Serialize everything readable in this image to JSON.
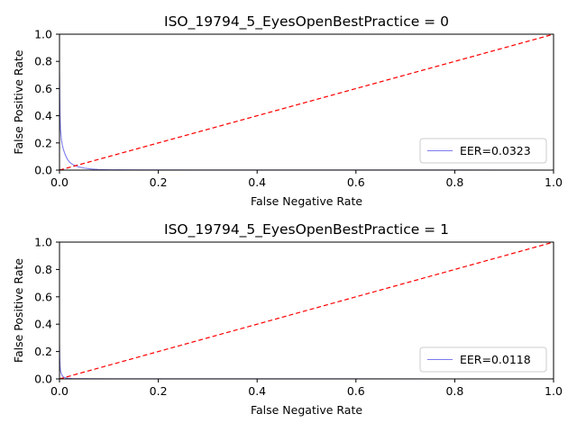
{
  "chart_data": [
    {
      "type": "line",
      "title": "ISO_19794_5_EyesOpenBestPractice = 0",
      "xlabel": "False Negative Rate",
      "ylabel": "False Positive Rate",
      "xlim": [
        0,
        1
      ],
      "ylim": [
        0,
        1
      ],
      "xticks": [
        "0.0",
        "0.2",
        "0.4",
        "0.6",
        "0.8",
        "1.0"
      ],
      "yticks": [
        "0.0",
        "0.2",
        "0.4",
        "0.6",
        "0.8",
        "1.0"
      ],
      "grid": false,
      "legend_position": "lower-right",
      "series": [
        {
          "name": "EER=0.0323",
          "color": "#7b7bf0",
          "x": [
            0.0,
            0.0005,
            0.001,
            0.002,
            0.004,
            0.006,
            0.008,
            0.012,
            0.016,
            0.02,
            0.025,
            0.032,
            0.04,
            0.05,
            0.065,
            0.08,
            0.1,
            0.15,
            0.3,
            0.6,
            1.0
          ],
          "y": [
            0.72,
            0.55,
            0.42,
            0.3,
            0.22,
            0.18,
            0.15,
            0.11,
            0.08,
            0.06,
            0.045,
            0.032,
            0.022,
            0.015,
            0.008,
            0.004,
            0.002,
            0.001,
            0.0005,
            0.0002,
            0.0
          ]
        },
        {
          "name": "",
          "color": "#ff0000",
          "dashed": true,
          "x": [
            0,
            1
          ],
          "y": [
            0,
            1
          ]
        }
      ]
    },
    {
      "type": "line",
      "title": "ISO_19794_5_EyesOpenBestPractice = 1",
      "xlabel": "False Negative Rate",
      "ylabel": "False Positive Rate",
      "xlim": [
        0,
        1
      ],
      "ylim": [
        0,
        1
      ],
      "xticks": [
        "0.0",
        "0.2",
        "0.4",
        "0.6",
        "0.8",
        "1.0"
      ],
      "yticks": [
        "0.0",
        "0.2",
        "0.4",
        "0.6",
        "0.8",
        "1.0"
      ],
      "grid": false,
      "legend_position": "lower-right",
      "series": [
        {
          "name": "EER=0.0118",
          "color": "#7b7bf0",
          "x": [
            0.0,
            0.0005,
            0.001,
            0.002,
            0.004,
            0.006,
            0.008,
            0.012,
            0.016,
            0.025,
            0.05,
            0.1,
            0.3,
            1.0
          ],
          "y": [
            0.25,
            0.15,
            0.1,
            0.06,
            0.035,
            0.022,
            0.014,
            0.008,
            0.005,
            0.002,
            0.001,
            0.0005,
            0.0002,
            0.0
          ]
        },
        {
          "name": "",
          "color": "#ff0000",
          "dashed": true,
          "x": [
            0,
            1
          ],
          "y": [
            0,
            1
          ]
        }
      ]
    }
  ]
}
